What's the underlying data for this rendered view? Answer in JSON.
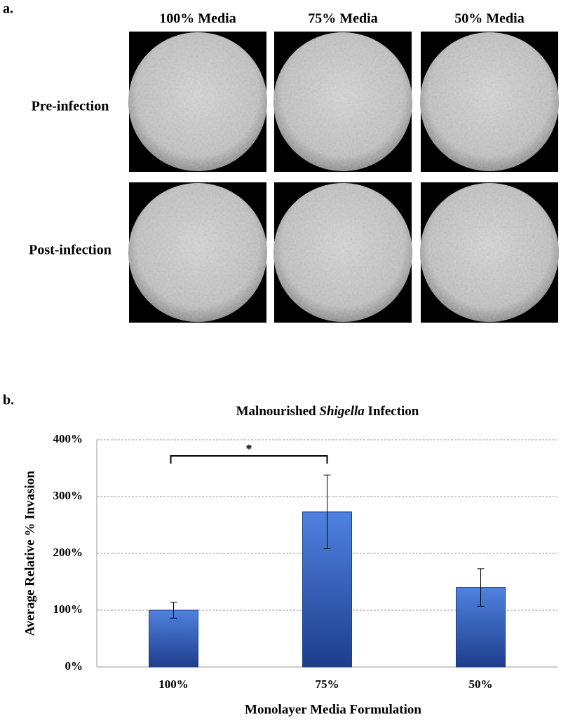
{
  "panel_a": {
    "label": "a.",
    "columns": [
      "100% Media",
      "75% Media",
      "50% Media"
    ],
    "rows": [
      "Pre-infection",
      "Post-infection"
    ]
  },
  "panel_b": {
    "label": "b."
  },
  "chart_data": {
    "type": "bar",
    "title": [
      "Malnourished",
      "Shigella",
      "Infection"
    ],
    "categories": [
      "100%",
      "75%",
      "50%"
    ],
    "values": [
      100,
      273,
      140
    ],
    "errors": [
      14,
      65,
      33
    ],
    "color": "#3a66c4",
    "ylim": [
      0,
      400
    ],
    "yticks": [
      {
        "value": 0,
        "label": "0%"
      },
      {
        "value": 100,
        "label": "100%"
      },
      {
        "value": 200,
        "label": "200%"
      },
      {
        "value": 300,
        "label": "300%"
      },
      {
        "value": 400,
        "label": "400%"
      }
    ],
    "grid": true,
    "xlabel": "Monolayer Media Formulation",
    "ylabel": "Average Relative % Invasion",
    "annotations": [
      {
        "text": "*"
      }
    ]
  }
}
